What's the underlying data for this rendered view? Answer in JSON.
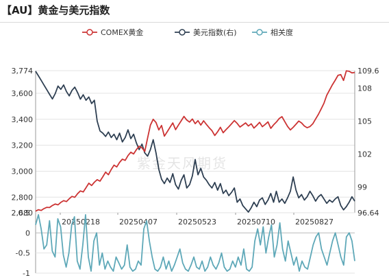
{
  "title": "【AU】黄金与美元指数",
  "watermark": "紫金天风期货",
  "colors": {
    "comex": "#cc3333",
    "dxy": "#2e3f52",
    "corr": "#5ea8b8",
    "axis": "#333333",
    "grid": "#e3e3e3"
  },
  "chart_data": [
    {
      "type": "line",
      "title": "",
      "legend_position": "top-center",
      "x_ticks": [
        "20250218",
        "20250407",
        "20250523",
        "20250710",
        "20250827"
      ],
      "left_ticks": [
        "3,774",
        "3,600",
        "3,400",
        "3,200",
        "3,000",
        "2,800",
        "2,680"
      ],
      "right_ticks": [
        "109.6",
        "108",
        "105",
        "102",
        "99",
        "96.64"
      ],
      "ylim_left": [
        2680,
        3774
      ],
      "ylim_right": [
        96.64,
        109.6
      ],
      "series": [
        {
          "name": "COMEX黄金",
          "axis": "left",
          "values": [
            2692,
            2703,
            2698,
            2712,
            2722,
            2720,
            2736,
            2747,
            2741,
            2760,
            2773,
            2766,
            2788,
            2806,
            2799,
            2827,
            2848,
            2840,
            2873,
            2907,
            2890,
            2915,
            2935,
            2923,
            2957,
            2993,
            2973,
            3013,
            3047,
            3033,
            3068,
            3093,
            3083,
            3120,
            3146,
            3133,
            3166,
            3192,
            3180,
            3152,
            3255,
            3355,
            3400,
            3375,
            3318,
            3352,
            3270,
            3303,
            3338,
            3372,
            3320,
            3355,
            3388,
            3422,
            3394,
            3378,
            3402,
            3366,
            3389,
            3355,
            3388,
            3360,
            3335,
            3312,
            3275,
            3303,
            3338,
            3296,
            3320,
            3342,
            3365,
            3390,
            3368,
            3340,
            3356,
            3372,
            3348,
            3365,
            3332,
            3353,
            3376,
            3343,
            3360,
            3380,
            3330,
            3357,
            3378,
            3405,
            3420,
            3382,
            3345,
            3318,
            3338,
            3362,
            3386,
            3372,
            3348,
            3335,
            3344,
            3365,
            3402,
            3438,
            3479,
            3523,
            3585,
            3625,
            3665,
            3700,
            3738,
            3744,
            3699,
            3773,
            3769,
            3757,
            3760
          ]
        },
        {
          "name": "美元指数(右)",
          "axis": "right",
          "values": [
            109.55,
            109.13,
            108.71,
            108.28,
            107.86,
            107.44,
            107.02,
            107.5,
            108.2,
            107.9,
            108.3,
            107.7,
            107.3,
            107.8,
            108.1,
            107.6,
            107.0,
            107.4,
            106.9,
            107.2,
            106.6,
            106.9,
            105.0,
            104.1,
            103.9,
            103.6,
            104.0,
            103.5,
            103.8,
            103.3,
            103.9,
            103.1,
            103.5,
            104.2,
            103.4,
            103.8,
            103.0,
            102.4,
            102.9,
            102.1,
            101.8,
            102.4,
            103.3,
            102.1,
            100.6,
            99.7,
            99.3,
            99.8,
            99.4,
            100.2,
            99.2,
            98.8,
            99.6,
            100.1,
            98.9,
            99.2,
            100.0,
            101.5,
            100.1,
            100.7,
            99.9,
            99.6,
            99.2,
            98.9,
            99.4,
            98.7,
            99.3,
            98.4,
            98.7,
            98.2,
            98.5,
            98.9,
            97.6,
            97.9,
            97.3,
            97.0,
            96.7,
            97.1,
            97.6,
            97.2,
            97.8,
            98.0,
            97.4,
            97.8,
            98.4,
            97.6,
            98.6,
            97.6,
            97.9,
            97.5,
            98.0,
            98.6,
            99.9,
            98.7,
            98.0,
            98.3,
            97.8,
            98.1,
            98.6,
            98.2,
            97.7,
            98.1,
            98.3,
            97.9,
            97.5,
            97.8,
            97.6,
            97.9,
            98.1,
            97.3,
            96.9,
            97.2,
            97.6,
            98.1,
            97.7
          ]
        },
        {
          "name": "相关度",
          "axis": "corr",
          "values": [
            0.2,
            0.45,
            0.1,
            -0.4,
            -0.3,
            0.3,
            -0.45,
            -0.6,
            0.35,
            0.15,
            -0.55,
            -0.85,
            -0.5,
            0.2,
            0.4,
            -0.7,
            -0.9,
            -0.3,
            0.45,
            -0.6,
            -0.95,
            -0.2,
            0.0,
            -0.8,
            -0.5,
            -0.9,
            -0.7,
            -0.85,
            -0.95,
            -0.6,
            -0.75,
            -0.9,
            -0.8,
            -0.3,
            -0.85,
            -0.95,
            -0.9,
            -0.7,
            -0.8,
            0.1,
            0.3,
            -0.2,
            -0.6,
            -0.9,
            -0.95,
            -0.85,
            -0.6,
            -0.9,
            -0.7,
            -0.95,
            -0.8,
            -0.6,
            -0.4,
            -0.75,
            -0.9,
            -0.95,
            -0.8,
            -0.6,
            -0.85,
            -0.9,
            -0.7,
            -0.95,
            -0.85,
            -0.6,
            -0.8,
            -0.9,
            -0.75,
            -0.5,
            -0.85,
            -0.95,
            -0.9,
            -0.7,
            -0.85,
            -0.6,
            -0.8,
            -0.4,
            -0.9,
            -0.95,
            -0.85,
            -0.2,
            0.1,
            -0.3,
            0.15,
            -0.5,
            -0.1,
            0.2,
            -0.6,
            -0.3,
            0.25,
            -0.4,
            -0.7,
            -0.2,
            -0.5,
            -0.8,
            -0.6,
            -0.95,
            -0.7,
            -0.85,
            -0.9,
            -0.6,
            -0.3,
            -0.1,
            0.0,
            -0.4,
            -0.6,
            -0.8,
            -0.5,
            -0.2,
            0.0,
            -0.3,
            -0.6,
            -0.8,
            -0.1,
            0.0,
            -0.2,
            -0.7
          ]
        }
      ],
      "corr_ticks": [
        "0.5",
        "0",
        "-0.5",
        "-1"
      ],
      "ylim_corr": [
        -1,
        0.5
      ]
    }
  ]
}
